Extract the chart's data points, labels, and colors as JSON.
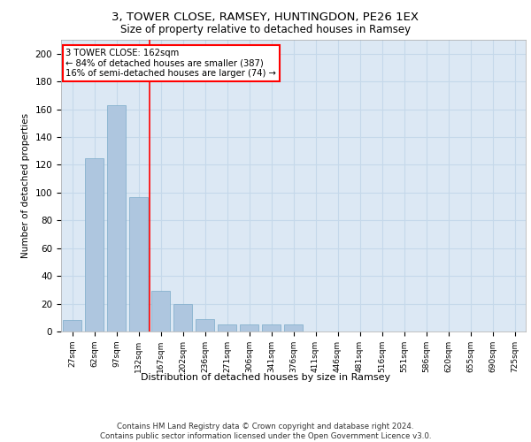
{
  "title1": "3, TOWER CLOSE, RAMSEY, HUNTINGDON, PE26 1EX",
  "title2": "Size of property relative to detached houses in Ramsey",
  "xlabel": "Distribution of detached houses by size in Ramsey",
  "ylabel": "Number of detached properties",
  "categories": [
    "27sqm",
    "62sqm",
    "97sqm",
    "132sqm",
    "167sqm",
    "202sqm",
    "236sqm",
    "271sqm",
    "306sqm",
    "341sqm",
    "376sqm",
    "411sqm",
    "446sqm",
    "481sqm",
    "516sqm",
    "551sqm",
    "586sqm",
    "620sqm",
    "655sqm",
    "690sqm",
    "725sqm"
  ],
  "values": [
    8,
    125,
    163,
    97,
    29,
    20,
    9,
    5,
    5,
    5,
    5,
    0,
    0,
    0,
    0,
    0,
    0,
    0,
    0,
    0,
    0
  ],
  "bar_color": "#aec6df",
  "bar_edge_color": "#7aaac8",
  "grid_color": "#c5d8ea",
  "bg_color": "#dce8f4",
  "annotation_text": "3 TOWER CLOSE: 162sqm\n← 84% of detached houses are smaller (387)\n16% of semi-detached houses are larger (74) →",
  "annotation_box_color": "white",
  "annotation_box_edge": "red",
  "footnote": "Contains HM Land Registry data © Crown copyright and database right 2024.\nContains public sector information licensed under the Open Government Licence v3.0.",
  "ylim": [
    0,
    210
  ],
  "yticks": [
    0,
    20,
    40,
    60,
    80,
    100,
    120,
    140,
    160,
    180,
    200
  ],
  "vline_x_index": 3.5
}
